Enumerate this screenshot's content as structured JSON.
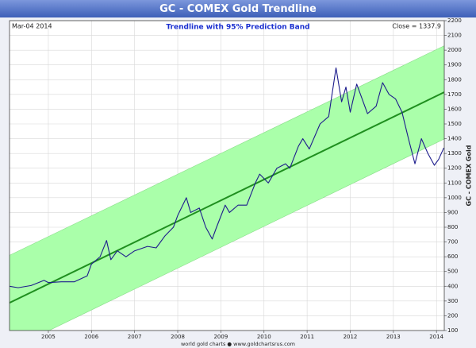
{
  "chart_data": {
    "type": "line",
    "title": "GC - COMEX Gold Trendline",
    "subtitle": "Trendline with 95% Prediction Band",
    "date_label": "Mar-04  2014",
    "close_label": "Close = 1337.9",
    "ylabel": "GC - COMEX Gold",
    "footer": "world gold charts ● www.goldchartsrus.com",
    "xlim": [
      2004.1,
      2014.18
    ],
    "xticks": [
      2005,
      2006,
      2007,
      2008,
      2009,
      2010,
      2011,
      2012,
      2013,
      2014
    ],
    "ylim": [
      100,
      2200
    ],
    "yticks": [
      100,
      200,
      300,
      400,
      500,
      600,
      700,
      800,
      900,
      1000,
      1100,
      1200,
      1300,
      1400,
      1500,
      1600,
      1700,
      1800,
      1900,
      2000,
      2100,
      2200
    ],
    "grid": true,
    "band": {
      "x": [
        2004.1,
        2014.18
      ],
      "upper": [
        610,
        2030
      ],
      "lower": [
        -30,
        1398
      ],
      "color": "#aaffaa"
    },
    "trendline": {
      "x": [
        2004.1,
        2014.18
      ],
      "values": [
        288,
        1715
      ],
      "color": "#1f8f1f"
    },
    "price": {
      "color": "#1c1c8c",
      "x": [
        2004.1,
        2004.3,
        2004.6,
        2004.9,
        2005.0,
        2005.3,
        2005.6,
        2005.9,
        2006.0,
        2006.2,
        2006.35,
        2006.45,
        2006.6,
        2006.8,
        2007.0,
        2007.3,
        2007.5,
        2007.7,
        2007.9,
        2008.0,
        2008.2,
        2008.3,
        2008.5,
        2008.65,
        2008.8,
        2008.9,
        2009.1,
        2009.2,
        2009.4,
        2009.6,
        2009.8,
        2009.9,
        2010.1,
        2010.3,
        2010.5,
        2010.6,
        2010.8,
        2010.9,
        2011.05,
        2011.3,
        2011.5,
        2011.67,
        2011.8,
        2011.9,
        2012.0,
        2012.15,
        2012.4,
        2012.6,
        2012.75,
        2012.9,
        2013.05,
        2013.2,
        2013.35,
        2013.5,
        2013.65,
        2013.8,
        2013.95,
        2014.05,
        2014.17
      ],
      "values": [
        400,
        390,
        405,
        440,
        425,
        430,
        430,
        470,
        550,
        600,
        710,
        580,
        640,
        600,
        640,
        670,
        660,
        740,
        800,
        880,
        1000,
        900,
        930,
        800,
        720,
        800,
        950,
        900,
        950,
        950,
        1100,
        1160,
        1100,
        1200,
        1230,
        1200,
        1350,
        1400,
        1330,
        1500,
        1550,
        1880,
        1650,
        1750,
        1580,
        1770,
        1570,
        1620,
        1780,
        1700,
        1670,
        1580,
        1400,
        1230,
        1400,
        1300,
        1220,
        1260,
        1338
      ]
    }
  }
}
